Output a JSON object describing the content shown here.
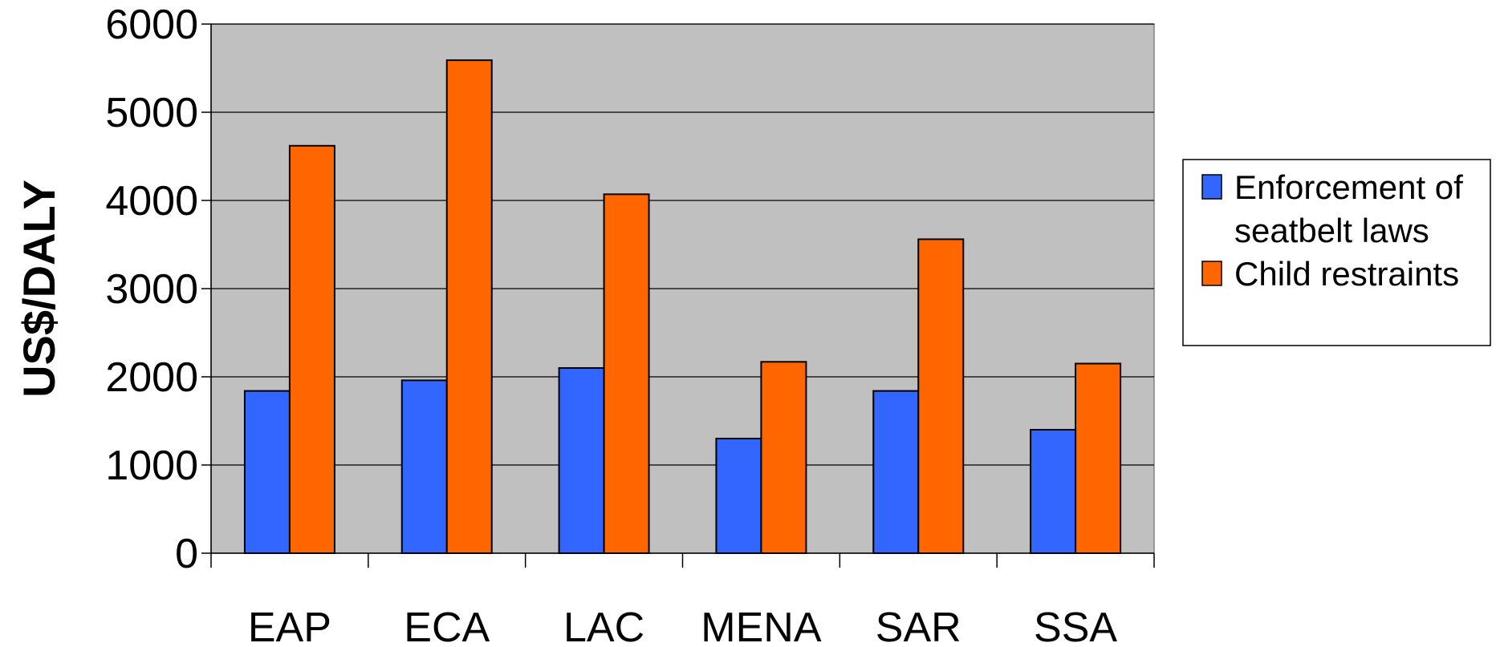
{
  "chart_data": {
    "type": "bar",
    "title": "",
    "xlabel": "",
    "ylabel": "US$/DALY",
    "ylim": [
      0,
      6000
    ],
    "yticks": [
      0,
      1000,
      2000,
      3000,
      4000,
      5000,
      6000
    ],
    "grid": true,
    "legend_position": "right",
    "categories": [
      "EAP",
      "ECA",
      "LAC",
      "MENA",
      "SAR",
      "SSA"
    ],
    "series": [
      {
        "name": "Enforcement of seatbelt laws",
        "legend_lines": [
          "Enforcement of",
          "seatbelt laws"
        ],
        "color": "#3366ff",
        "values": [
          1840,
          1960,
          2100,
          1300,
          1840,
          1400
        ]
      },
      {
        "name": "Child restraints",
        "legend_lines": [
          "Child restraints"
        ],
        "color": "#ff6600",
        "values": [
          4620,
          5590,
          4070,
          2170,
          3560,
          2150
        ]
      }
    ],
    "plot_background": "#c0c0c0"
  }
}
